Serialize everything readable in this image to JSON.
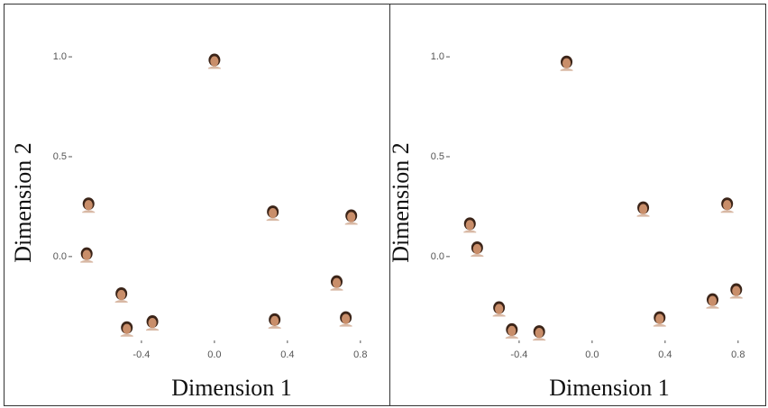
{
  "chart_data": [
    {
      "type": "scatter",
      "xlabel": "Dimension 1",
      "ylabel": "Dimension 2",
      "x": [
        0.0,
        -0.69,
        -0.7,
        -0.51,
        -0.48,
        -0.34,
        0.32,
        0.75,
        0.67,
        0.33,
        0.72
      ],
      "values": [
        0.98,
        0.26,
        0.01,
        -0.19,
        -0.36,
        -0.33,
        0.22,
        0.2,
        -0.13,
        -0.32,
        -0.31
      ],
      "xlim": [
        -0.78,
        0.87
      ],
      "ylim": [
        -0.42,
        1.05
      ],
      "xticks": [
        -0.4,
        {
          "value": 0,
          "label": "0.0"
        },
        0.4,
        0.8
      ],
      "yticks": [
        {
          "value": 0,
          "label": "0.0"
        },
        0.5,
        {
          "value": 1,
          "label": "1.0"
        }
      ]
    },
    {
      "type": "scatter",
      "xlabel": "Dimension 1",
      "ylabel": "Dimension 2",
      "x": [
        -0.14,
        -0.67,
        -0.63,
        -0.51,
        -0.44,
        -0.29,
        0.28,
        0.74,
        0.66,
        0.79,
        0.37
      ],
      "values": [
        0.97,
        0.16,
        0.04,
        -0.26,
        -0.37,
        -0.38,
        0.24,
        0.26,
        -0.22,
        -0.17,
        -0.31
      ],
      "xlim": [
        -0.78,
        0.87
      ],
      "ylim": [
        -0.42,
        1.05
      ],
      "xticks": [
        -0.4,
        {
          "value": 0,
          "label": "0.0"
        },
        0.4,
        0.8
      ],
      "yticks": [
        {
          "value": 0,
          "label": "0.0"
        },
        0.5,
        {
          "value": 1,
          "label": "1.0"
        }
      ]
    }
  ]
}
